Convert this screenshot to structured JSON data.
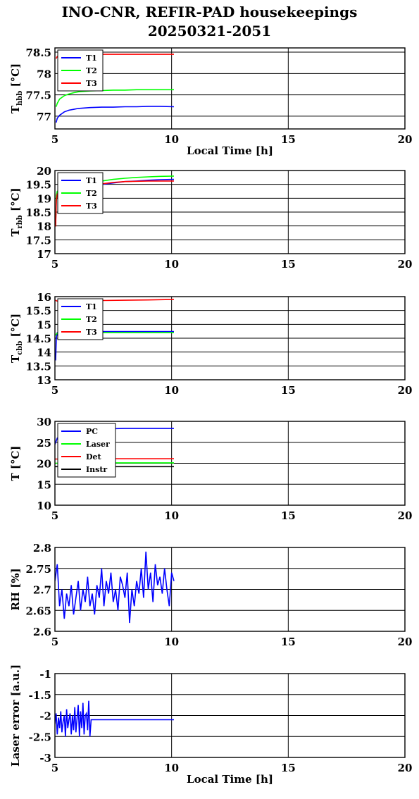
{
  "title": {
    "line1": "INO-CNR, REFIR-PAD housekeepings",
    "line2": "20250321-2051"
  },
  "chart_data": [
    {
      "type": "line",
      "ylabel": "T",
      "ylabel_sub": "hbb",
      "ylabel_unit": " [°C]",
      "xlabel": "Local Time [h]",
      "xlim": [
        5,
        20
      ],
      "ylim": [
        76.7,
        78.6
      ],
      "xticks": [
        "5",
        "10",
        "15",
        "20"
      ],
      "yticks": [
        77,
        77.5,
        78,
        78.5
      ],
      "ytick_labels": [
        "77",
        "77.5",
        "78",
        "78.5"
      ],
      "grid": true,
      "legend_position": "top-left",
      "series": [
        {
          "name": "T1",
          "color": "#0000ff",
          "x": [
            5.05,
            5.1,
            5.2,
            5.4,
            5.6,
            5.8,
            6.0,
            6.5,
            7.0,
            7.5,
            8.0,
            8.5,
            9.0,
            9.5,
            10.1
          ],
          "y": [
            76.85,
            76.95,
            77.02,
            77.1,
            77.14,
            77.16,
            77.18,
            77.2,
            77.21,
            77.21,
            77.22,
            77.22,
            77.23,
            77.23,
            77.22
          ]
        },
        {
          "name": "T2",
          "color": "#00ff00",
          "x": [
            5.05,
            5.1,
            5.2,
            5.4,
            5.6,
            5.8,
            6.0,
            6.5,
            7.0,
            7.5,
            8.0,
            8.5,
            9.0,
            9.5,
            10.1
          ],
          "y": [
            77.22,
            77.3,
            77.4,
            77.48,
            77.52,
            77.55,
            77.57,
            77.59,
            77.6,
            77.61,
            77.61,
            77.62,
            77.62,
            77.62,
            77.62
          ]
        },
        {
          "name": "T3",
          "color": "#ff0000",
          "x": [
            5.05,
            5.1,
            5.2,
            5.4,
            5.6,
            5.8,
            6.0,
            6.5,
            7.0,
            7.5,
            8.0,
            8.5,
            9.0,
            9.5,
            10.1
          ],
          "y": [
            78.35,
            78.4,
            78.42,
            78.43,
            78.44,
            78.44,
            78.45,
            78.45,
            78.45,
            78.45,
            78.45,
            78.45,
            78.45,
            78.45,
            78.45
          ]
        }
      ]
    },
    {
      "type": "line",
      "ylabel": "T",
      "ylabel_sub": "rbb",
      "ylabel_unit": " [°C]",
      "xlabel": "",
      "xlim": [
        5,
        20
      ],
      "ylim": [
        17,
        20
      ],
      "xticks": [
        "5",
        "10",
        "15",
        "20"
      ],
      "yticks": [
        17,
        17.5,
        18,
        18.5,
        19,
        19.5,
        20
      ],
      "ytick_labels": [
        "17",
        "17.5",
        "18",
        "18.5",
        "19",
        "19.5",
        "20"
      ],
      "grid": true,
      "legend_position": "top-left",
      "series": [
        {
          "name": "T1",
          "color": "#0000ff",
          "x": [
            5.03,
            5.06,
            5.1,
            5.3,
            5.6,
            6.0,
            6.5,
            7.0,
            7.5,
            8.0,
            8.5,
            9.0,
            9.5,
            10.1
          ],
          "y": [
            18.1,
            19.0,
            19.2,
            19.3,
            19.35,
            19.4,
            19.45,
            19.5,
            19.55,
            19.6,
            19.62,
            19.65,
            19.67,
            19.68
          ]
        },
        {
          "name": "T2",
          "color": "#00ff00",
          "x": [
            5.03,
            5.06,
            5.1,
            5.3,
            5.6,
            6.0,
            6.5,
            7.0,
            7.5,
            8.0,
            8.5,
            9.0,
            9.5,
            10.1
          ],
          "y": [
            18.0,
            19.1,
            19.25,
            19.35,
            19.42,
            19.48,
            19.55,
            19.62,
            19.68,
            19.72,
            19.75,
            19.77,
            19.79,
            19.8
          ]
        },
        {
          "name": "T3",
          "color": "#ff0000",
          "x": [
            5.03,
            5.06,
            5.1,
            5.3,
            5.6,
            6.0,
            6.5,
            7.0,
            7.5,
            8.0,
            8.5,
            9.0,
            9.5,
            10.1
          ],
          "y": [
            17.98,
            18.9,
            19.15,
            19.25,
            19.3,
            19.38,
            19.45,
            19.52,
            19.57,
            19.6,
            19.61,
            19.62,
            19.62,
            19.62
          ]
        }
      ]
    },
    {
      "type": "line",
      "ylabel": "T",
      "ylabel_sub": "cbb",
      "ylabel_unit": " [°C]",
      "xlabel": "",
      "xlim": [
        5,
        20
      ],
      "ylim": [
        13,
        16
      ],
      "xticks": [
        "5",
        "10",
        "15",
        "20"
      ],
      "yticks": [
        13,
        13.5,
        14,
        14.5,
        15,
        15.5,
        16
      ],
      "ytick_labels": [
        "13",
        "13.5",
        "14",
        "14.5",
        "15",
        "15.5",
        "16"
      ],
      "grid": true,
      "legend_position": "top-left",
      "series": [
        {
          "name": "T1",
          "color": "#0000ff",
          "x": [
            5.03,
            5.06,
            5.1,
            5.3,
            5.6,
            6.0,
            7.0,
            8.0,
            9.0,
            10.1
          ],
          "y": [
            13.7,
            14.5,
            14.7,
            14.72,
            14.73,
            14.73,
            14.74,
            14.74,
            14.74,
            14.74
          ]
        },
        {
          "name": "T2",
          "color": "#00ff00",
          "x": [
            5.03,
            5.06,
            5.1,
            5.3,
            5.6,
            6.0,
            7.0,
            8.0,
            9.0,
            10.1
          ],
          "y": [
            14.6,
            14.65,
            14.68,
            14.69,
            14.69,
            14.69,
            14.7,
            14.7,
            14.7,
            14.7
          ]
        },
        {
          "name": "T3",
          "color": "#ff0000",
          "x": [
            5.03,
            5.06,
            5.1,
            5.3,
            5.6,
            6.0,
            7.0,
            8.0,
            9.0,
            10.1
          ],
          "y": [
            15.88,
            15.85,
            15.84,
            15.84,
            15.85,
            15.85,
            15.86,
            15.87,
            15.88,
            15.9
          ]
        }
      ]
    },
    {
      "type": "line",
      "ylabel": "T [°C]",
      "ylabel_sub": "",
      "ylabel_unit": "",
      "xlabel": "",
      "xlim": [
        5,
        20
      ],
      "ylim": [
        10,
        30
      ],
      "xticks": [
        "5",
        "10",
        "15",
        "20"
      ],
      "yticks": [
        10,
        15,
        20,
        25,
        30
      ],
      "ytick_labels": [
        "10",
        "15",
        "20",
        "25",
        "30"
      ],
      "grid": true,
      "legend_position": "top-left",
      "series": [
        {
          "name": "PC",
          "color": "#0000ff",
          "x": [
            5.0,
            5.1,
            5.3,
            5.6,
            6.0,
            7.0,
            8.0,
            9.0,
            10.1
          ],
          "y": [
            24.5,
            26.0,
            27.0,
            27.6,
            28.0,
            28.2,
            28.3,
            28.3,
            28.3
          ]
        },
        {
          "name": "Laser",
          "color": "#00ff00",
          "x": [
            5.0,
            5.5,
            6.0,
            7.0,
            8.0,
            9.0,
            10.1
          ],
          "y": [
            20.0,
            20.1,
            20.1,
            20.1,
            20.1,
            20.1,
            20.1
          ]
        },
        {
          "name": "Det",
          "color": "#ff0000",
          "x": [
            5.0,
            5.5,
            6.0,
            7.0,
            8.0,
            9.0,
            10.1
          ],
          "y": [
            21.0,
            21.0,
            21.1,
            21.1,
            21.1,
            21.1,
            21.1
          ]
        },
        {
          "name": "Instr",
          "color": "#000000",
          "x": [
            5.0,
            5.5,
            6.0,
            7.0,
            8.0,
            9.0,
            10.1
          ],
          "y": [
            19.2,
            19.2,
            19.2,
            19.2,
            19.2,
            19.2,
            19.2
          ]
        }
      ]
    },
    {
      "type": "line",
      "ylabel": "RH [%]",
      "ylabel_sub": "",
      "ylabel_unit": "",
      "xlabel": "",
      "xlim": [
        5,
        20
      ],
      "ylim": [
        2.6,
        2.8
      ],
      "xticks": [
        "5",
        "10",
        "15",
        "20"
      ],
      "yticks": [
        2.6,
        2.65,
        2.7,
        2.75,
        2.8
      ],
      "ytick_labels": [
        "2.6",
        "2.65",
        "2.7",
        "2.75",
        "2.8"
      ],
      "grid": true,
      "legend_position": "none",
      "series": [
        {
          "name": "",
          "color": "#0000ff",
          "x": [
            5.0,
            5.1,
            5.2,
            5.3,
            5.4,
            5.5,
            5.6,
            5.7,
            5.8,
            5.9,
            6.0,
            6.1,
            6.2,
            6.3,
            6.4,
            6.5,
            6.6,
            6.7,
            6.8,
            6.9,
            7.0,
            7.1,
            7.2,
            7.3,
            7.4,
            7.5,
            7.6,
            7.7,
            7.8,
            7.9,
            8.0,
            8.1,
            8.2,
            8.3,
            8.4,
            8.5,
            8.6,
            8.7,
            8.8,
            8.9,
            9.0,
            9.1,
            9.2,
            9.3,
            9.4,
            9.5,
            9.6,
            9.7,
            9.8,
            9.9,
            10.0,
            10.1
          ],
          "y": [
            2.72,
            2.76,
            2.66,
            2.7,
            2.63,
            2.69,
            2.66,
            2.71,
            2.64,
            2.68,
            2.72,
            2.65,
            2.7,
            2.67,
            2.73,
            2.66,
            2.69,
            2.64,
            2.71,
            2.68,
            2.75,
            2.66,
            2.72,
            2.69,
            2.74,
            2.67,
            2.7,
            2.65,
            2.73,
            2.71,
            2.68,
            2.74,
            2.62,
            2.7,
            2.66,
            2.72,
            2.69,
            2.75,
            2.68,
            2.79,
            2.7,
            2.74,
            2.67,
            2.76,
            2.71,
            2.73,
            2.69,
            2.75,
            2.7,
            2.66,
            2.74,
            2.72
          ]
        }
      ]
    },
    {
      "type": "line",
      "ylabel": "Laser error [a.u.]",
      "ylabel_sub": "",
      "ylabel_unit": "",
      "xlabel": "Local Time [h]",
      "xlim": [
        5,
        20
      ],
      "ylim": [
        -3,
        -1
      ],
      "xticks": [
        "5",
        "10",
        "15",
        "20"
      ],
      "yticks": [
        -3,
        -2.5,
        -2,
        -1.5,
        -1
      ],
      "ytick_labels": [
        "-3",
        "-2.5",
        "-2",
        "-1.5",
        "-1"
      ],
      "grid": true,
      "legend_position": "none",
      "series": [
        {
          "name": "",
          "color": "#0000ff",
          "x": [
            5.0,
            5.05,
            5.1,
            5.15,
            5.2,
            5.25,
            5.3,
            5.35,
            5.4,
            5.45,
            5.5,
            5.55,
            5.6,
            5.65,
            5.7,
            5.75,
            5.8,
            5.85,
            5.9,
            5.95,
            6.0,
            6.05,
            6.1,
            6.15,
            6.2,
            6.25,
            6.3,
            6.35,
            6.4,
            6.45,
            6.5,
            6.55,
            6.6,
            7.0,
            7.5,
            8.0,
            8.5,
            9.0,
            9.5,
            10.1
          ],
          "y": [
            -2.2,
            -1.95,
            -2.45,
            -2.05,
            -2.3,
            -1.9,
            -2.4,
            -2.15,
            -2.0,
            -2.5,
            -1.85,
            -2.3,
            -2.1,
            -1.95,
            -2.45,
            -2.0,
            -2.35,
            -1.8,
            -2.4,
            -2.05,
            -1.75,
            -2.5,
            -1.9,
            -2.3,
            -1.7,
            -2.45,
            -2.0,
            -1.95,
            -2.35,
            -1.65,
            -2.5,
            -2.1,
            -2.1,
            -2.1,
            -2.1,
            -2.1,
            -2.1,
            -2.1,
            -2.1,
            -2.1
          ]
        }
      ]
    }
  ]
}
